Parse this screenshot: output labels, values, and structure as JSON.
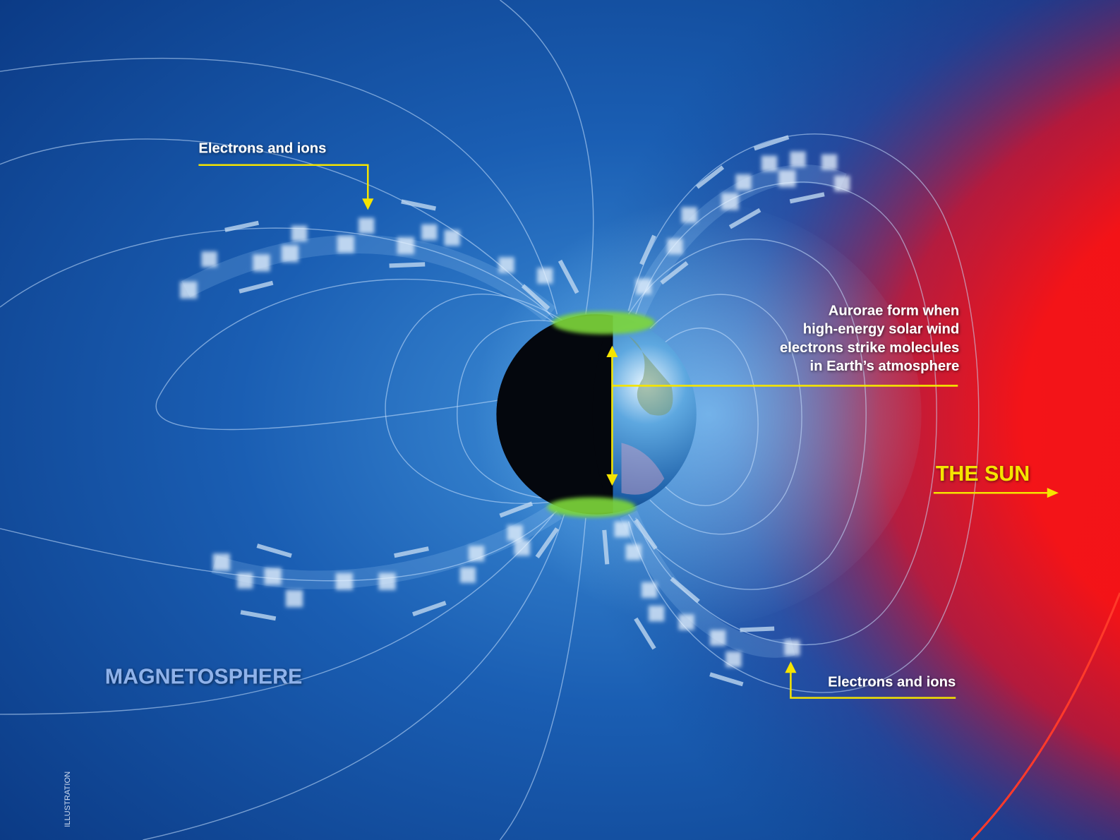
{
  "labels": {
    "electrons_top": "Electrons and ions",
    "aurorae": [
      "Aurorae form when",
      "high-energy solar wind",
      "electrons strike molecules",
      "in Earth’s atmosphere"
    ],
    "sun": "THE SUN",
    "electrons_bottom": "Electrons and ions",
    "magnetosphere": "MAGNETOSPHERE",
    "credit": "ILLUSTRATION"
  }
}
